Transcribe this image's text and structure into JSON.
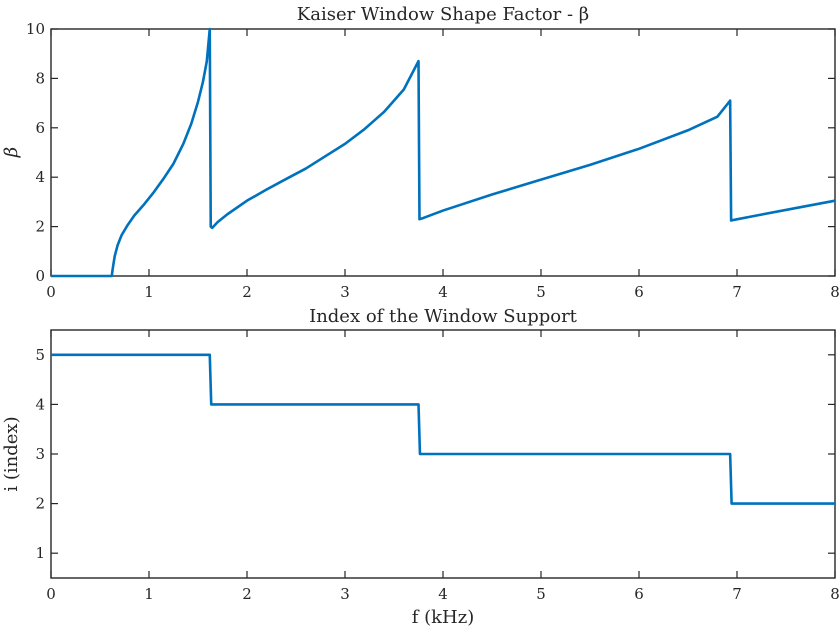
{
  "chart_data": [
    {
      "type": "line",
      "title": "Kaiser Window Shape Factor - β",
      "xlabel": "",
      "ylabel": "β",
      "xlim": [
        0,
        8
      ],
      "ylim": [
        0,
        10
      ],
      "xticks": [
        0,
        1,
        2,
        3,
        4,
        5,
        6,
        7,
        8
      ],
      "yticks": [
        0,
        2,
        4,
        6,
        8,
        10
      ],
      "grid": false,
      "series": [
        {
          "color": "#0072BD",
          "x": [
            0,
            0.62,
            0.63,
            0.65,
            0.68,
            0.72,
            0.78,
            0.85,
            0.95,
            1.05,
            1.15,
            1.25,
            1.35,
            1.43,
            1.5,
            1.55,
            1.59,
            1.62,
            1.63,
            1.645,
            1.7,
            1.8,
            2.0,
            2.2,
            2.4,
            2.6,
            2.8,
            3.0,
            3.2,
            3.4,
            3.6,
            3.75,
            3.76,
            3.8,
            4.0,
            4.5,
            5.0,
            5.5,
            6.0,
            6.5,
            6.8,
            6.93,
            6.94,
            7.2,
            7.6,
            8.0
          ],
          "y": [
            0,
            0,
            0.3,
            0.8,
            1.25,
            1.65,
            2.05,
            2.45,
            2.9,
            3.4,
            3.95,
            4.55,
            5.35,
            6.15,
            7.05,
            7.85,
            8.7,
            10.0,
            2.0,
            1.95,
            2.18,
            2.5,
            3.05,
            3.5,
            3.93,
            4.35,
            4.85,
            5.35,
            5.95,
            6.65,
            7.55,
            8.7,
            2.3,
            2.35,
            2.65,
            3.3,
            3.9,
            4.5,
            5.15,
            5.9,
            6.45,
            7.1,
            2.25,
            2.45,
            2.75,
            3.05
          ]
        }
      ]
    },
    {
      "type": "line",
      "title": "Index of the Window Support",
      "xlabel": "f (kHz)",
      "ylabel": "i (index)",
      "xlim": [
        0,
        8
      ],
      "ylim": [
        0.5,
        5.5
      ],
      "xticks": [
        0,
        1,
        2,
        3,
        4,
        5,
        6,
        7,
        8
      ],
      "yticks": [
        1,
        2,
        3,
        4,
        5
      ],
      "grid": false,
      "series": [
        {
          "color": "#0072BD",
          "x": [
            0,
            1.62,
            1.635,
            3.75,
            3.765,
            6.93,
            6.945,
            8.0
          ],
          "y": [
            5,
            5,
            4,
            4,
            3,
            3,
            2,
            2
          ]
        }
      ]
    }
  ]
}
